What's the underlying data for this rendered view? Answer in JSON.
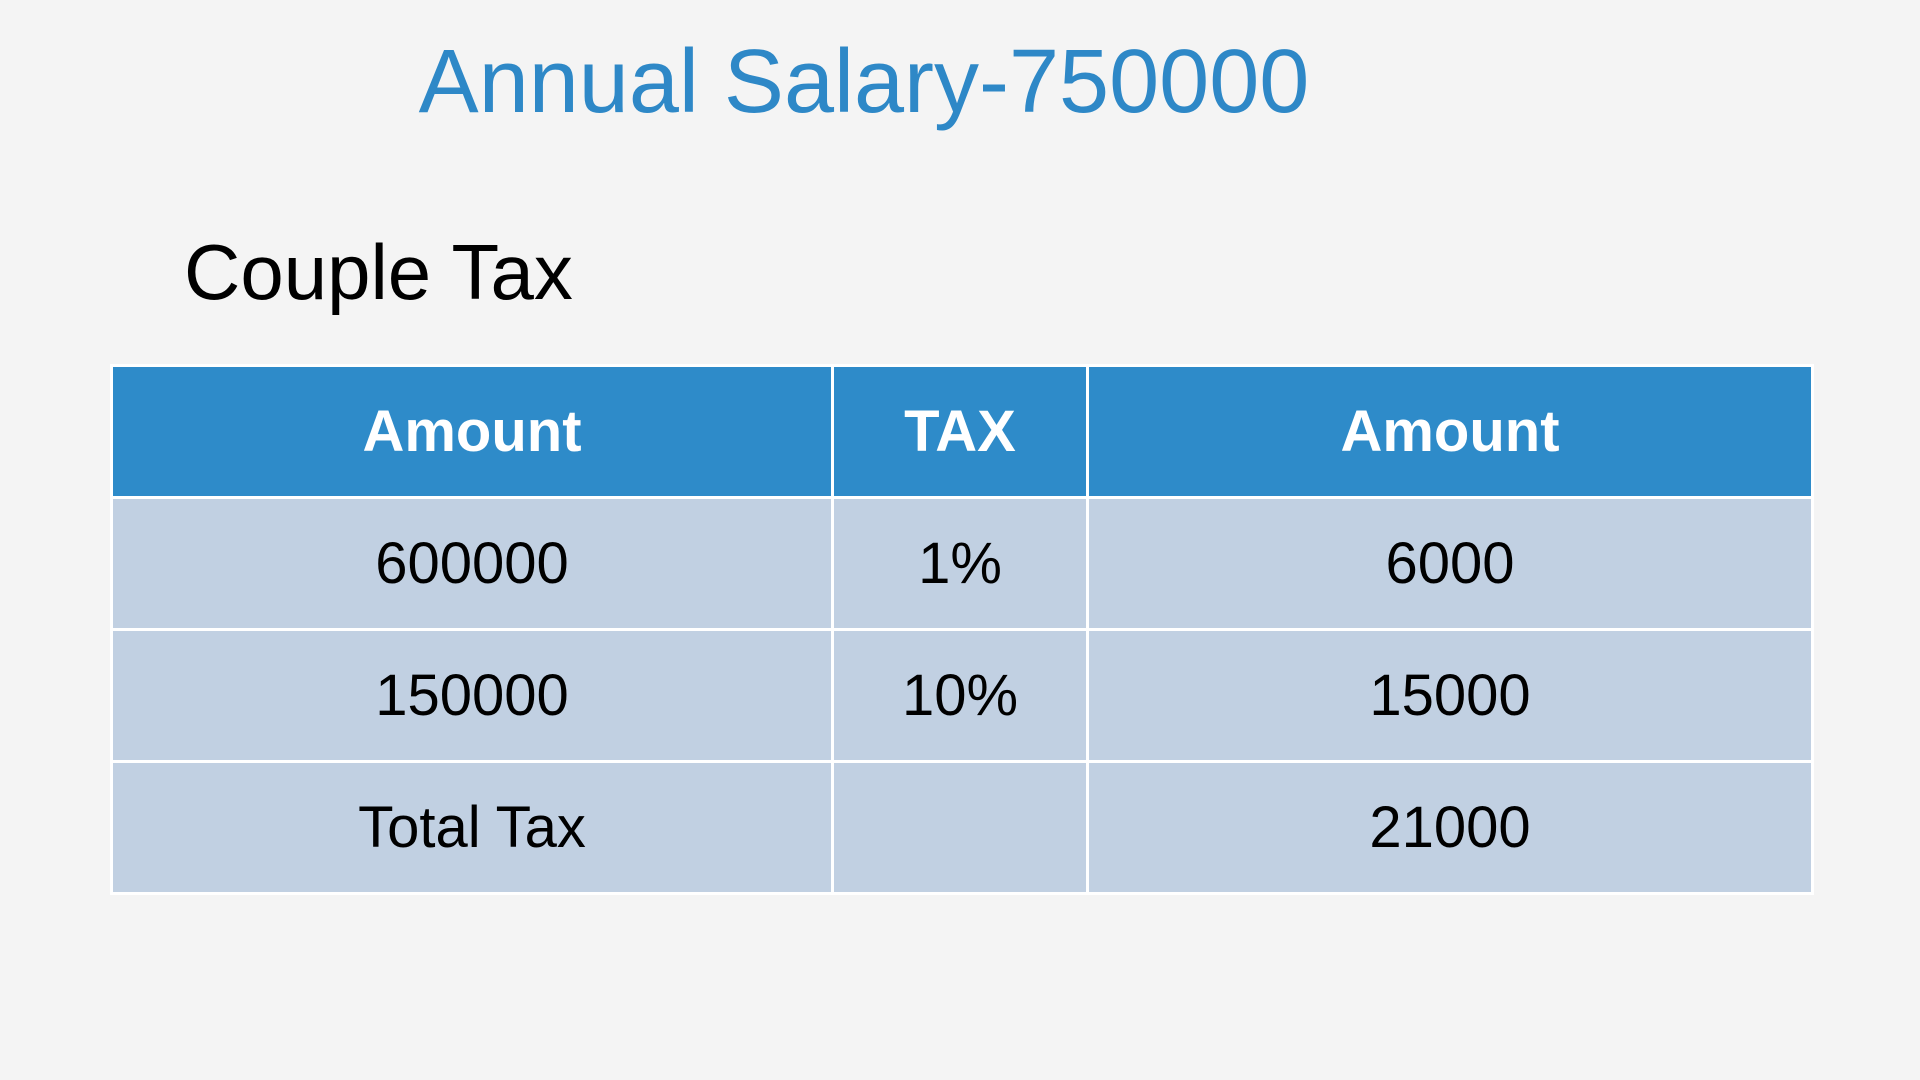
{
  "title": "Annual Salary-750000",
  "section_heading": "Couple Tax",
  "colors": {
    "background": "#f4f4f4",
    "title": "#2e88c7",
    "header_fill": "#2e8bc9",
    "row_fill": "#c1d0e2",
    "grid_line": "#ffffff"
  },
  "table": {
    "headers": [
      "Amount",
      "TAX",
      "Amount"
    ],
    "rows": [
      [
        "600000",
        "1%",
        "6000"
      ],
      [
        "150000",
        "10%",
        "15000"
      ],
      [
        "Total Tax",
        "",
        "21000"
      ]
    ]
  }
}
